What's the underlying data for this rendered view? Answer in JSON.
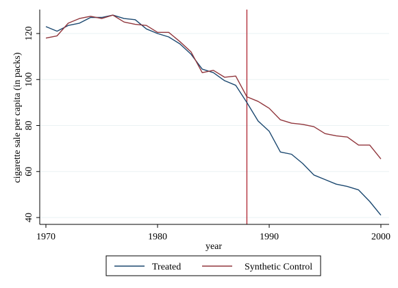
{
  "chart_data": {
    "type": "line",
    "xlabel": "year",
    "ylabel": "cigarette sale per capita (in packs)",
    "xlim": [
      1970,
      2000
    ],
    "ylim": [
      40,
      130
    ],
    "xticks": [
      "1970",
      "1980",
      "1990",
      "2000"
    ],
    "yticks": [
      "40",
      "60",
      "80",
      "100",
      "120"
    ],
    "grid": true,
    "legend_position": "bottom",
    "vline": {
      "x": 1988,
      "color": "#b2303a"
    },
    "x": [
      1970,
      1971,
      1972,
      1973,
      1974,
      1975,
      1976,
      1977,
      1978,
      1979,
      1980,
      1981,
      1982,
      1983,
      1984,
      1985,
      1986,
      1987,
      1988,
      1989,
      1990,
      1991,
      1992,
      1993,
      1994,
      1995,
      1996,
      1997,
      1998,
      1999,
      2000
    ],
    "series": [
      {
        "name": "Treated",
        "color": "#1a476f",
        "values": [
          123.0,
          121.0,
          123.5,
          124.5,
          127.0,
          127.0,
          128.0,
          126.5,
          126.0,
          122.0,
          120.0,
          118.5,
          115.5,
          111.0,
          104.5,
          103.0,
          99.5,
          97.5,
          90.0,
          82.0,
          77.5,
          68.5,
          67.5,
          63.5,
          58.5,
          56.5,
          54.5,
          53.5,
          52.0,
          47.0,
          41.0
        ]
      },
      {
        "name": "Synthetic Control",
        "color": "#90353b",
        "values": [
          118.0,
          119.0,
          124.5,
          126.5,
          127.5,
          126.5,
          128.0,
          125.0,
          124.0,
          123.5,
          120.5,
          120.5,
          116.5,
          112.0,
          103.0,
          104.0,
          101.0,
          101.5,
          92.5,
          90.5,
          87.5,
          82.5,
          81.0,
          80.5,
          79.5,
          76.5,
          75.5,
          75.0,
          71.5,
          71.5,
          65.5
        ]
      }
    ]
  }
}
